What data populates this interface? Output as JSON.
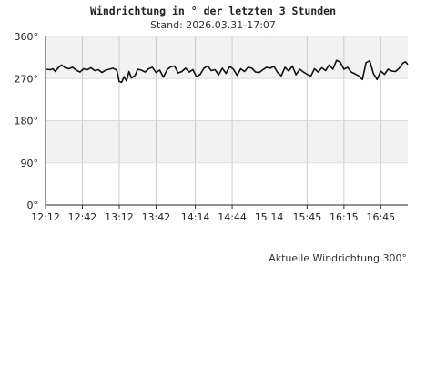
{
  "header": {
    "title": "Windrichtung in ° der letzten 3 Stunden",
    "subtitle": "Stand: 2026.03.31-17:07"
  },
  "footer": {
    "current_label": "Aktuelle Windrichtung 300°"
  },
  "chart_data": {
    "type": "line",
    "title": "Windrichtung in ° der letzten 3 Stunden",
    "subtitle": "Stand: 2026.03.31-17:07",
    "xlabel": "",
    "ylabel": "",
    "ylim": [
      0,
      360
    ],
    "xlim": [
      "12:12",
      "17:07"
    ],
    "yticks": [
      0,
      90,
      180,
      270,
      360
    ],
    "ytick_labels": [
      "0°",
      "90°",
      "180°",
      "270°",
      "360°"
    ],
    "xticks": [
      "12:12",
      "12:42",
      "13:12",
      "13:42",
      "14:14",
      "14:44",
      "15:14",
      "15:45",
      "16:15",
      "16:45"
    ],
    "grid": true,
    "shaded_bands": [
      [
        90,
        180
      ],
      [
        270,
        360
      ]
    ],
    "colors": {
      "line": "#111111",
      "band": "#f2f2f2",
      "grid": "#cccccc"
    },
    "series": [
      {
        "x": [
          "12:12",
          "12:16",
          "12:18",
          "12:20",
          "12:22",
          "12:25",
          "12:28",
          "12:31",
          "12:34",
          "12:37",
          "12:40",
          "12:43",
          "12:46",
          "12:49",
          "12:52",
          "12:55",
          "12:58",
          "13:01",
          "13:04",
          "13:07",
          "13:10",
          "13:12",
          "13:14",
          "13:16",
          "13:18",
          "13:20",
          "13:22",
          "13:25",
          "13:27",
          "13:30",
          "13:33",
          "13:36",
          "13:39",
          "13:42",
          "13:45",
          "13:48",
          "13:51",
          "13:54",
          "13:57",
          "14:00",
          "14:03",
          "14:06",
          "14:09",
          "14:12",
          "14:15",
          "14:18",
          "14:21",
          "14:24",
          "14:27",
          "14:30",
          "14:33",
          "14:36",
          "14:39",
          "14:42",
          "14:45",
          "14:48",
          "14:51",
          "14:54",
          "14:57",
          "15:00",
          "15:03",
          "15:06",
          "15:09",
          "15:12",
          "15:15",
          "15:18",
          "15:21",
          "15:24",
          "15:27",
          "15:30",
          "15:33",
          "15:36",
          "15:39",
          "15:42",
          "15:45",
          "15:48",
          "15:51",
          "15:54",
          "15:57",
          "16:00",
          "16:03",
          "16:06",
          "16:09",
          "16:12",
          "16:15",
          "16:18",
          "16:21",
          "16:24",
          "16:27",
          "16:30",
          "16:33",
          "16:36",
          "16:39",
          "16:42",
          "16:45",
          "16:48",
          "16:51",
          "16:54",
          "16:57",
          "17:00",
          "17:03",
          "17:05",
          "17:07"
        ],
        "values": [
          290,
          289,
          291,
          285,
          292,
          299,
          293,
          291,
          294,
          288,
          284,
          291,
          289,
          293,
          287,
          289,
          283,
          288,
          290,
          292,
          288,
          264,
          262,
          274,
          265,
          285,
          271,
          277,
          290,
          288,
          284,
          291,
          294,
          283,
          288,
          273,
          289,
          295,
          297,
          282,
          285,
          292,
          284,
          289,
          274,
          279,
          292,
          297,
          287,
          289,
          278,
          292,
          281,
          296,
          290,
          277,
          291,
          285,
          294,
          292,
          284,
          283,
          289,
          294,
          292,
          296,
          283,
          276,
          294,
          286,
          297,
          278,
          290,
          284,
          279,
          275,
          291,
          284,
          293,
          287,
          299,
          290,
          309,
          305,
          290,
          294,
          284,
          280,
          276,
          268,
          304,
          308,
          281,
          268,
          286,
          279,
          290,
          286,
          285,
          292,
          303,
          306,
          300
        ]
      }
    ]
  }
}
